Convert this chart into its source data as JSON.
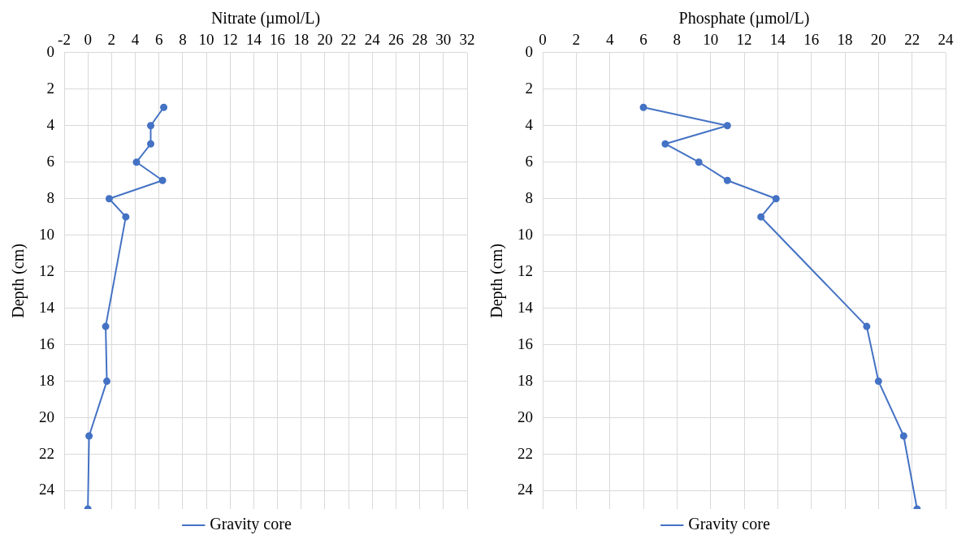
{
  "chart_data": [
    {
      "type": "line",
      "xlabel": "Nitrate (µmol/L)",
      "ylabel": "Depth (cm)",
      "xlim": [
        -2,
        32
      ],
      "xticks": [
        -2,
        0,
        2,
        4,
        6,
        8,
        10,
        12,
        14,
        16,
        18,
        20,
        22,
        24,
        26,
        28,
        30,
        32
      ],
      "ylim": [
        25,
        0
      ],
      "yticks": [
        0,
        2,
        4,
        6,
        8,
        10,
        12,
        14,
        16,
        18,
        20,
        22,
        24
      ],
      "grid": true,
      "legend": "bottom",
      "marker": "circle",
      "series": [
        {
          "name": "Gravity core",
          "color": "#4472c4",
          "x": [
            6.4,
            5.3,
            5.3,
            4.1,
            6.3,
            1.8,
            3.2,
            1.5,
            1.6,
            0.1,
            0
          ],
          "values": [
            3,
            4,
            5,
            6,
            7,
            8,
            9,
            15,
            18,
            21,
            25
          ]
        }
      ]
    },
    {
      "type": "line",
      "xlabel": "Phosphate (µmol/L)",
      "ylabel": "Depth (cm)",
      "xlim": [
        0,
        24
      ],
      "xticks": [
        0,
        2,
        4,
        6,
        8,
        10,
        12,
        14,
        16,
        18,
        20,
        22,
        24
      ],
      "ylim": [
        25,
        0
      ],
      "yticks": [
        0,
        2,
        4,
        6,
        8,
        10,
        12,
        14,
        16,
        18,
        20,
        22,
        24
      ],
      "grid": true,
      "legend": "bottom",
      "marker": "circle",
      "series": [
        {
          "name": "Gravity core",
          "color": "#4472c4",
          "x": [
            6.0,
            11.0,
            7.3,
            9.3,
            11.0,
            13.9,
            13.0,
            19.3,
            20.0,
            21.5,
            22.3
          ],
          "values": [
            3,
            4,
            5,
            6,
            7,
            8,
            9,
            15,
            18,
            21,
            25
          ]
        }
      ]
    }
  ]
}
